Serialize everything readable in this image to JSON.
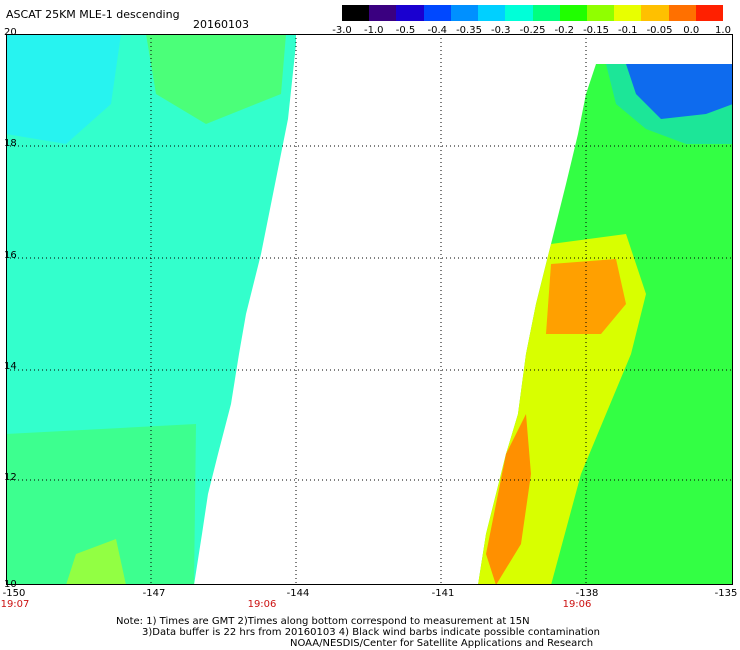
{
  "title": "ASCAT 25KM MLE-1 descending",
  "date": "20160103",
  "colorbar": {
    "labels": [
      "-3.0",
      "-1.0",
      "-0.5",
      "-0.4",
      "-0.35",
      "-0.3",
      "-0.25",
      "-0.2",
      "-0.15",
      "-0.1",
      "-0.05",
      "0.0",
      "1.0"
    ],
    "colors": [
      "#000000",
      "#3a0080",
      "#1a00d0",
      "#0048ff",
      "#0090ff",
      "#00d0ff",
      "#00ffd8",
      "#00ff80",
      "#20ff00",
      "#90ff00",
      "#e8ff00",
      "#ffc000",
      "#ff7000",
      "#ff2000"
    ]
  },
  "map": {
    "lon_range": [
      -150,
      -135
    ],
    "lat_range": [
      10,
      20
    ],
    "x_ticks": [
      "-150",
      "-147",
      "-144",
      "-141",
      "-138",
      "-135"
    ],
    "y_ticks": [
      "20",
      "18",
      "16",
      "14",
      "12",
      "10"
    ],
    "pass_times": [
      "19:07",
      "19:06",
      "19:06"
    ]
  },
  "notes": [
    "Note: 1) Times are GMT 2)Times along bottom correspond to measurement at 15N",
    "3)Data buffer is 22 hrs from 20160103 4) Black wind barbs indicate possible contamination",
    "NOAA/NESDIS/Center for Satellite Applications and Research"
  ]
}
